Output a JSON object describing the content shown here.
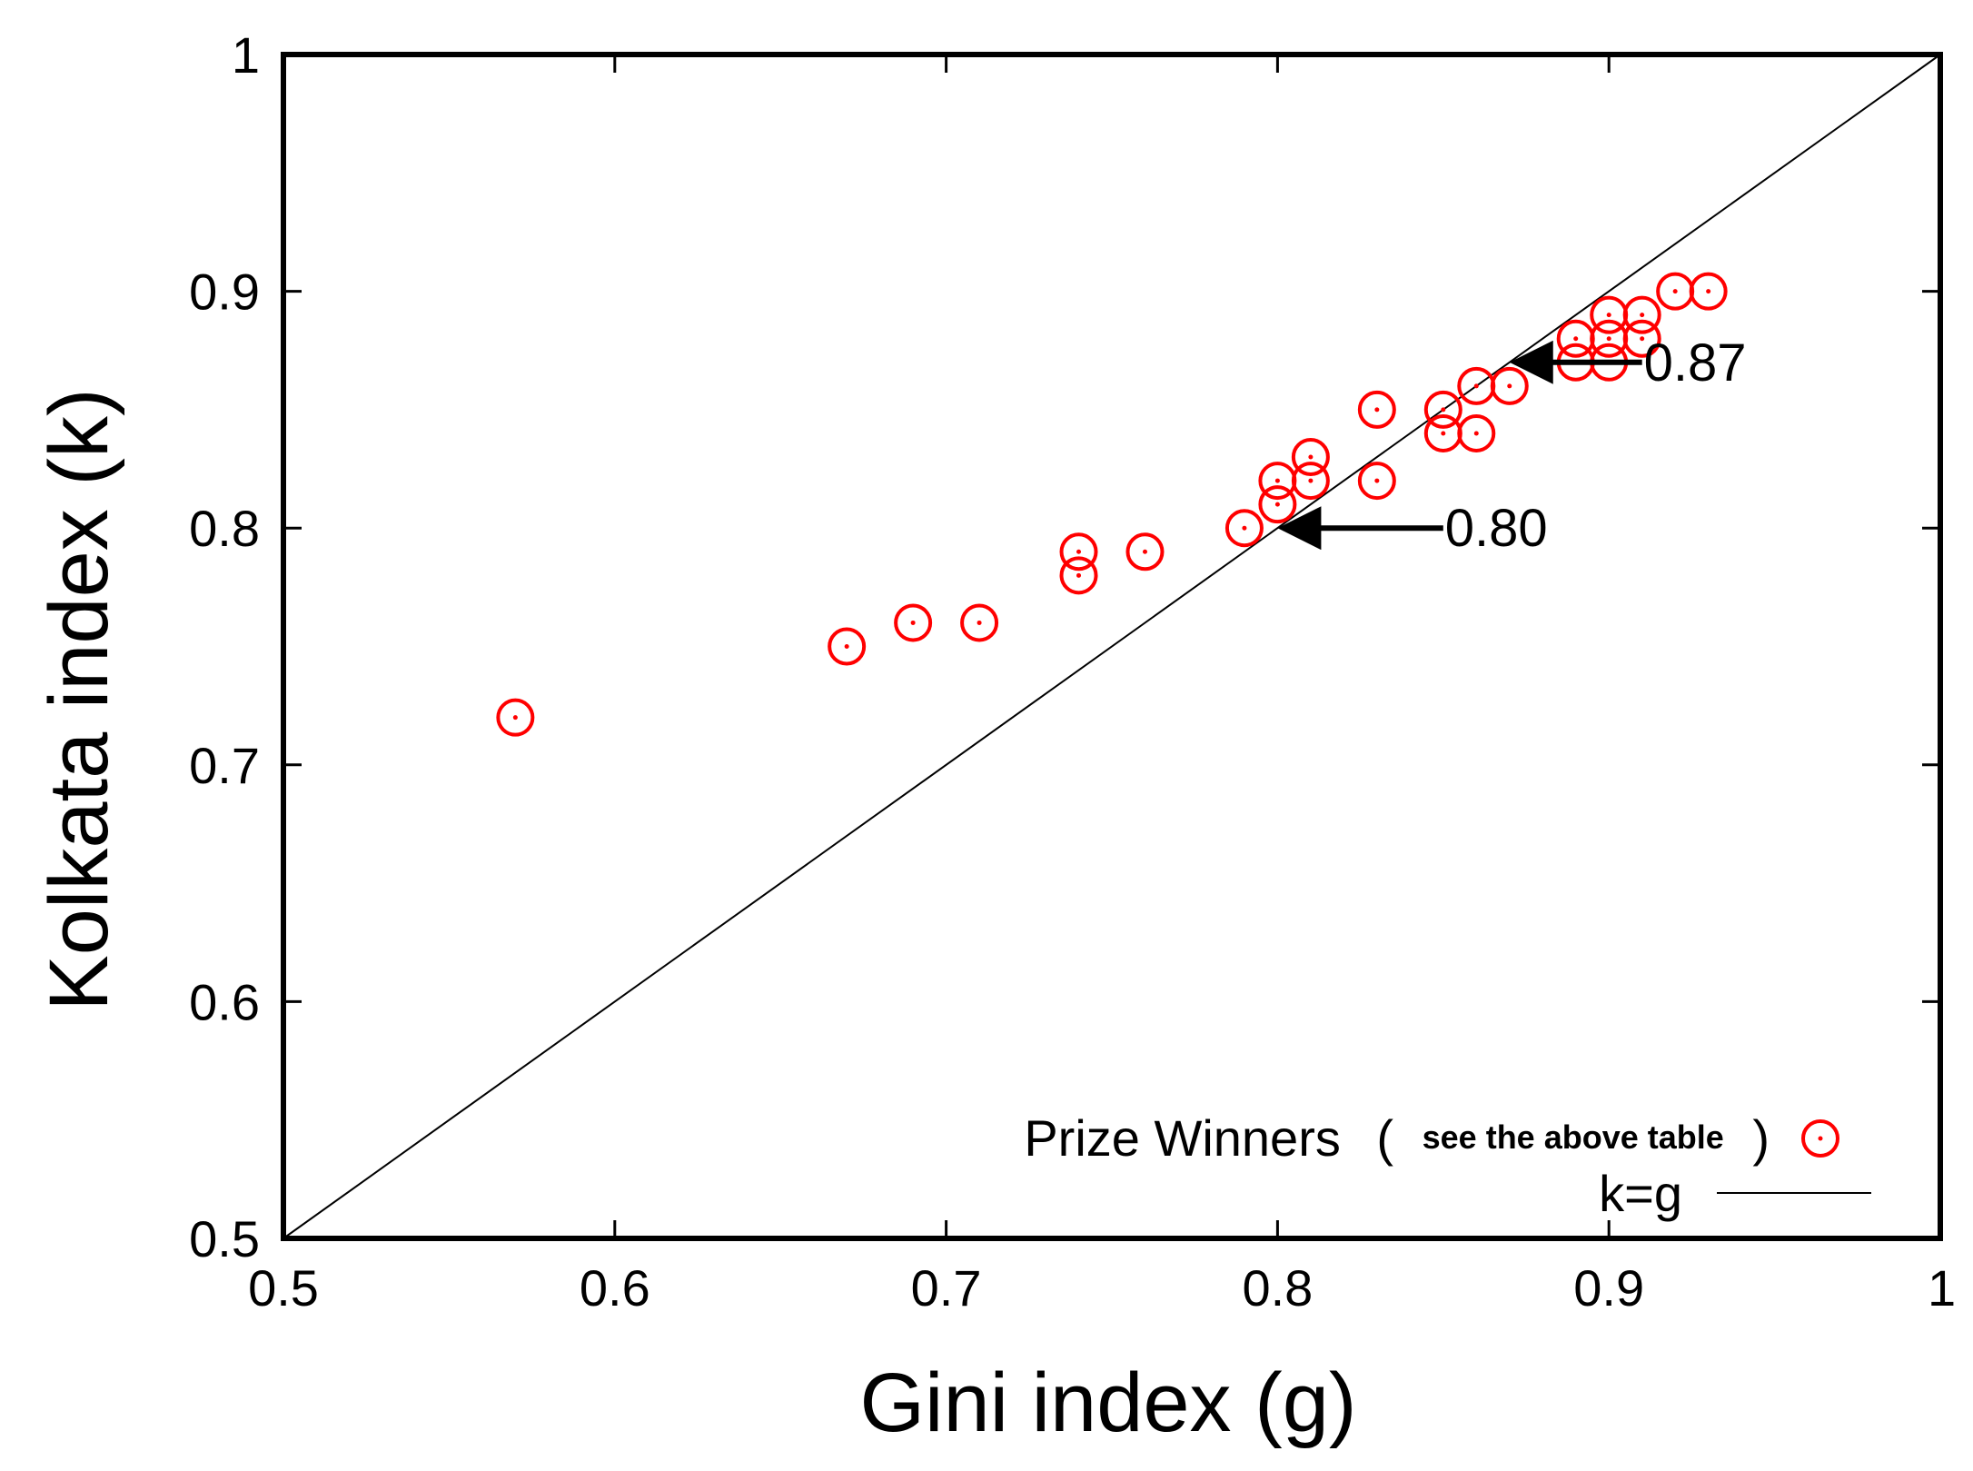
{
  "chart_data": {
    "type": "scatter",
    "title": "",
    "xlabel": "Gini index (g)",
    "ylabel": "Kolkata index (k)",
    "xlim": [
      0.5,
      1
    ],
    "ylim": [
      0.5,
      1
    ],
    "x_ticks": [
      0.5,
      0.6,
      0.7,
      0.8,
      0.9,
      1
    ],
    "y_ticks": [
      0.5,
      0.6,
      0.7,
      0.8,
      0.9,
      1
    ],
    "x_tick_labels": [
      "0.5",
      "0.6",
      "0.7",
      "0.8",
      "0.9",
      "1"
    ],
    "y_tick_labels": [
      "0.5",
      "0.6",
      "0.7",
      "0.8",
      "0.9",
      "1"
    ],
    "grid": false,
    "legend_position": "bottom-right",
    "series": [
      {
        "name": "Prize Winners",
        "legend_note": "see the above table",
        "marker": "circle-dot",
        "color": "#ff0000",
        "points": [
          {
            "x": 0.57,
            "y": 0.72
          },
          {
            "x": 0.67,
            "y": 0.75
          },
          {
            "x": 0.69,
            "y": 0.76
          },
          {
            "x": 0.71,
            "y": 0.76
          },
          {
            "x": 0.74,
            "y": 0.79
          },
          {
            "x": 0.74,
            "y": 0.78
          },
          {
            "x": 0.76,
            "y": 0.79
          },
          {
            "x": 0.79,
            "y": 0.8
          },
          {
            "x": 0.8,
            "y": 0.82
          },
          {
            "x": 0.8,
            "y": 0.81
          },
          {
            "x": 0.81,
            "y": 0.83
          },
          {
            "x": 0.81,
            "y": 0.82
          },
          {
            "x": 0.83,
            "y": 0.85
          },
          {
            "x": 0.83,
            "y": 0.82
          },
          {
            "x": 0.85,
            "y": 0.85
          },
          {
            "x": 0.85,
            "y": 0.84
          },
          {
            "x": 0.86,
            "y": 0.86
          },
          {
            "x": 0.86,
            "y": 0.84
          },
          {
            "x": 0.87,
            "y": 0.86
          },
          {
            "x": 0.89,
            "y": 0.88
          },
          {
            "x": 0.89,
            "y": 0.87
          },
          {
            "x": 0.9,
            "y": 0.89
          },
          {
            "x": 0.9,
            "y": 0.88
          },
          {
            "x": 0.9,
            "y": 0.87
          },
          {
            "x": 0.91,
            "y": 0.89
          },
          {
            "x": 0.91,
            "y": 0.88
          },
          {
            "x": 0.92,
            "y": 0.9
          },
          {
            "x": 0.93,
            "y": 0.9
          }
        ]
      },
      {
        "name": "k=g",
        "type": "line",
        "color": "#000000",
        "points": [
          {
            "x": 0.5,
            "y": 0.5
          },
          {
            "x": 1,
            "y": 1
          }
        ]
      }
    ],
    "annotations": [
      {
        "text": "0.87",
        "from": {
          "x": 0.91,
          "y": 0.87
        },
        "to": {
          "x": 0.87,
          "y": 0.87
        }
      },
      {
        "text": "0.80",
        "from": {
          "x": 0.85,
          "y": 0.8
        },
        "to": {
          "x": 0.8,
          "y": 0.8
        }
      }
    ]
  }
}
